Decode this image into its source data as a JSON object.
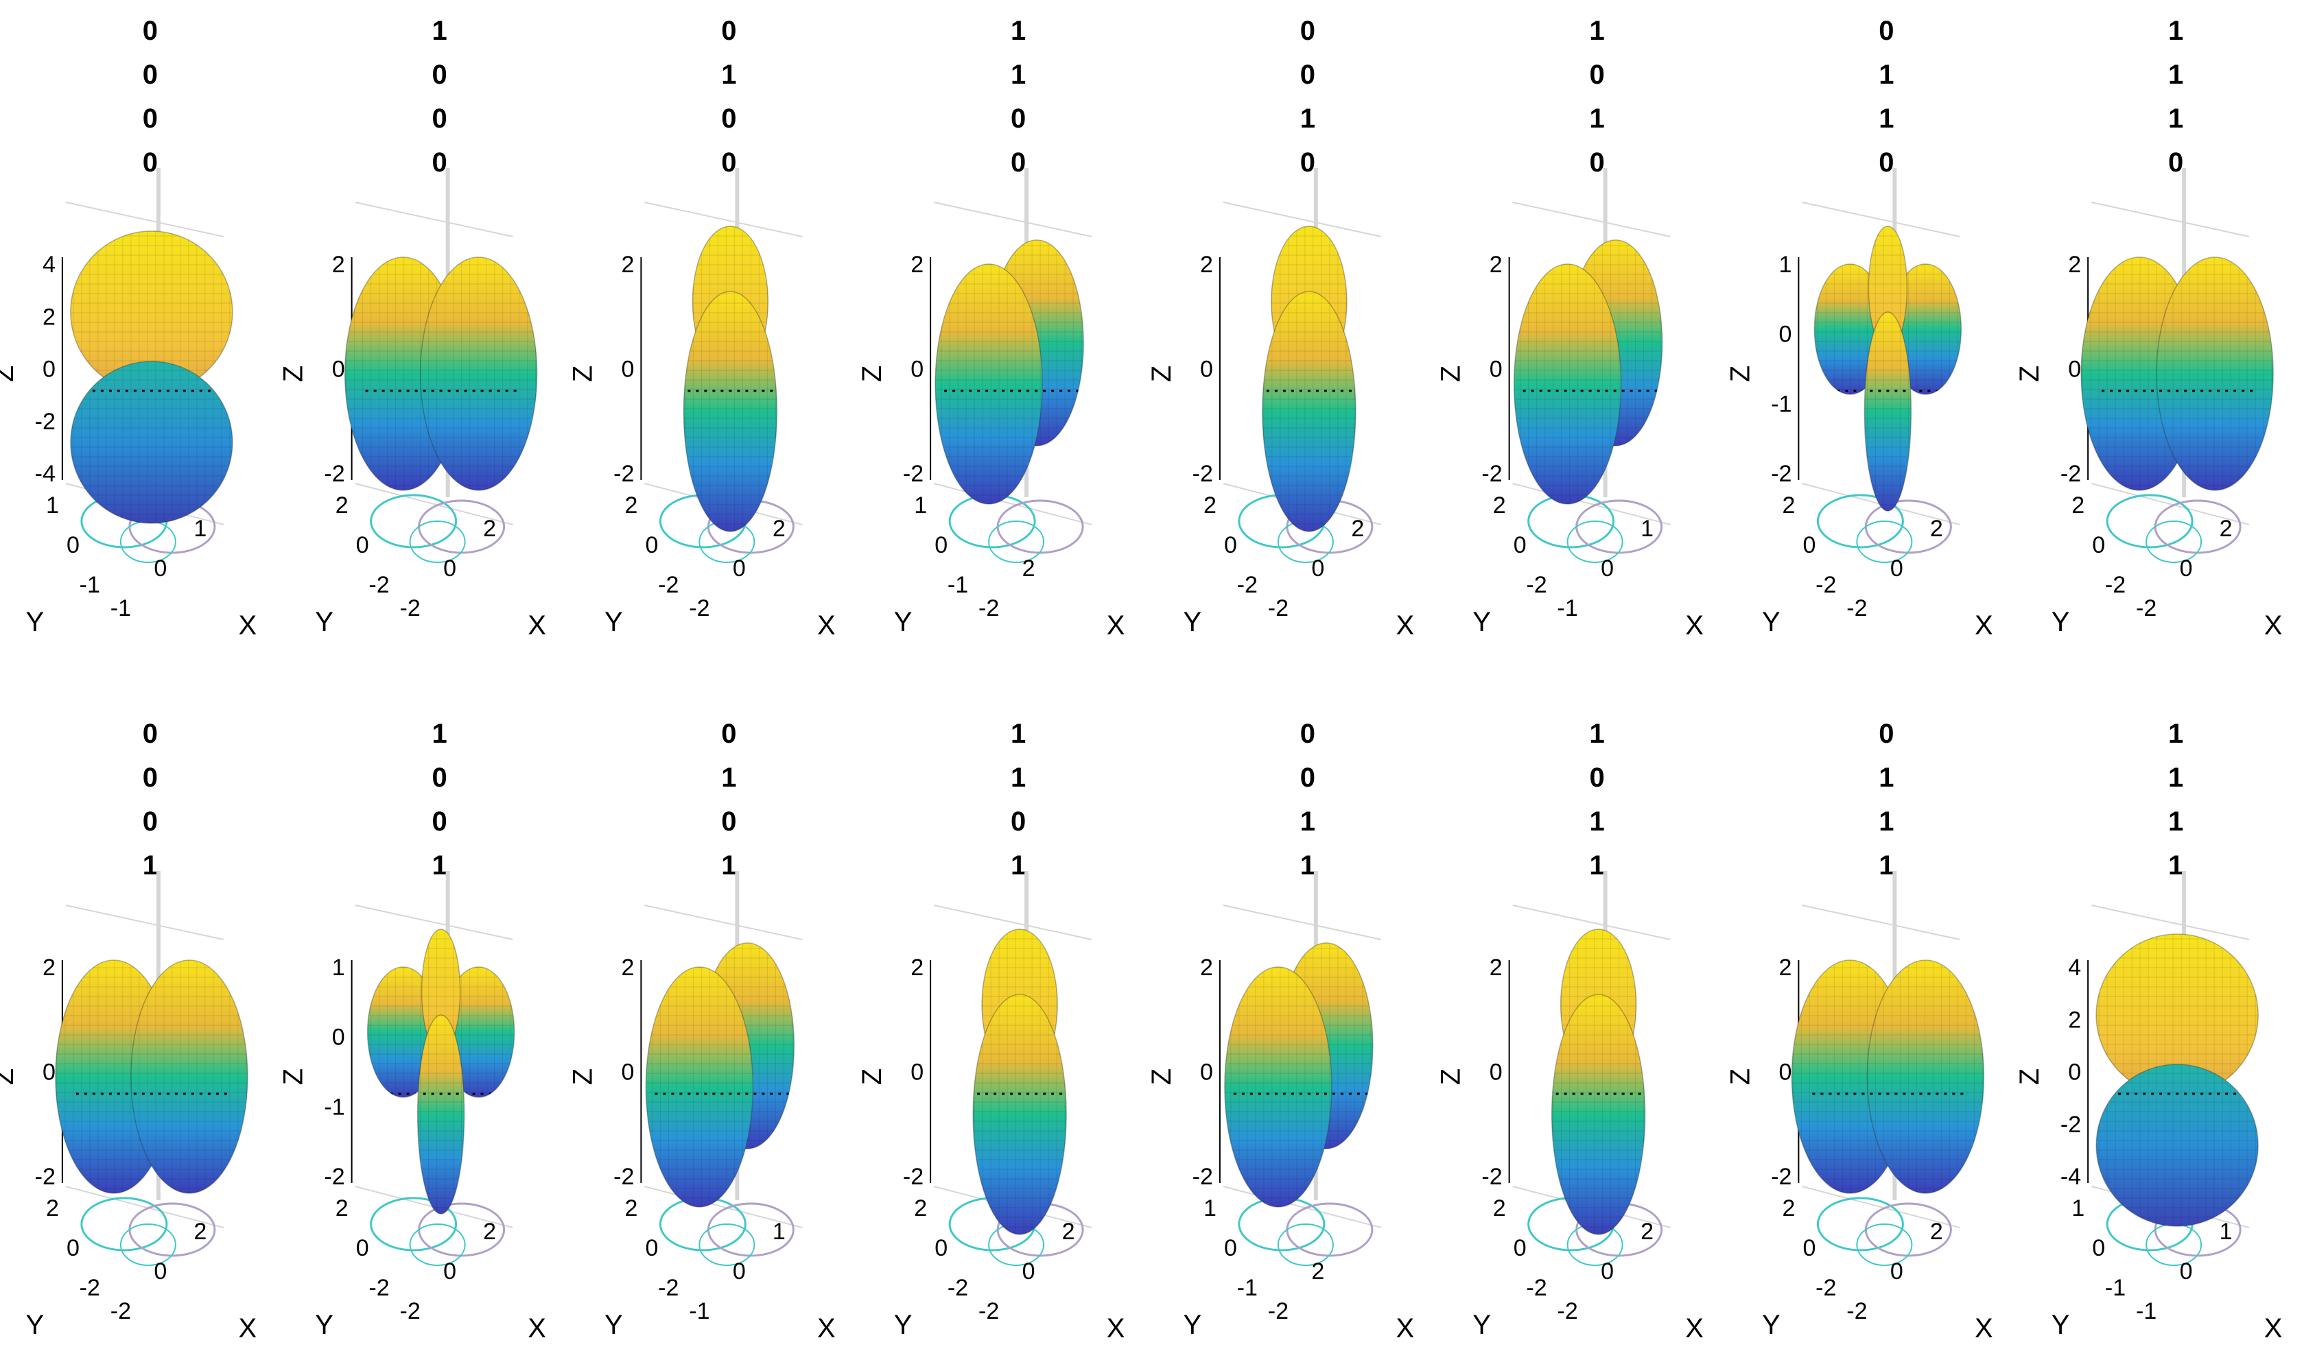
{
  "chart_data": [
    {
      "type": "surface",
      "title_bits": [
        "0",
        "0",
        "0",
        "0"
      ],
      "zlabel": "Z",
      "xlabel": "X",
      "ylabel": "Y",
      "z_ticks": [
        "4",
        "2",
        "0",
        "-2",
        "-4"
      ],
      "y_ticks": [
        "1",
        "0",
        "-1"
      ],
      "x_ticks": [
        "-1",
        "0",
        "1"
      ],
      "shape": "sphere-pair"
    },
    {
      "type": "surface",
      "title_bits": [
        "1",
        "0",
        "0",
        "0"
      ],
      "zlabel": "Z",
      "xlabel": "X",
      "ylabel": "Y",
      "z_ticks": [
        "2",
        "0",
        "-2"
      ],
      "y_ticks": [
        "2",
        "0",
        "-2"
      ],
      "x_ticks": [
        "-2",
        "0",
        "2"
      ],
      "shape": "double-lobe"
    },
    {
      "type": "surface",
      "title_bits": [
        "0",
        "1",
        "0",
        "0"
      ],
      "zlabel": "Z",
      "xlabel": "X",
      "ylabel": "Y",
      "z_ticks": [
        "2",
        "0",
        "-2"
      ],
      "y_ticks": [
        "2",
        "0",
        "-2"
      ],
      "x_ticks": [
        "-2",
        "0",
        "2"
      ],
      "shape": "narrow-lobe"
    },
    {
      "type": "surface",
      "title_bits": [
        "1",
        "1",
        "0",
        "0"
      ],
      "zlabel": "Z",
      "xlabel": "X",
      "ylabel": "Y",
      "z_ticks": [
        "2",
        "0",
        "-2"
      ],
      "y_ticks": [
        "1",
        "0",
        "-1"
      ],
      "x_ticks": [
        "-2",
        "2"
      ],
      "shape": "quad-lobe"
    },
    {
      "type": "surface",
      "title_bits": [
        "0",
        "0",
        "1",
        "0"
      ],
      "zlabel": "Z",
      "xlabel": "X",
      "ylabel": "Y",
      "z_ticks": [
        "2",
        "0",
        "-2"
      ],
      "y_ticks": [
        "2",
        "0",
        "-2"
      ],
      "x_ticks": [
        "-2",
        "0",
        "2"
      ],
      "shape": "narrow-lobe"
    },
    {
      "type": "surface",
      "title_bits": [
        "1",
        "0",
        "1",
        "0"
      ],
      "zlabel": "Z",
      "xlabel": "X",
      "ylabel": "Y",
      "z_ticks": [
        "2",
        "0",
        "-2"
      ],
      "y_ticks": [
        "2",
        "0",
        "-2"
      ],
      "x_ticks": [
        "-1",
        "0",
        "1"
      ],
      "shape": "quad-lobe"
    },
    {
      "type": "surface",
      "title_bits": [
        "0",
        "1",
        "1",
        "0"
      ],
      "zlabel": "Z",
      "xlabel": "X",
      "ylabel": "Y",
      "z_ticks": [
        "1",
        "0",
        "-1",
        "-2"
      ],
      "y_ticks": [
        "2",
        "0",
        "-2"
      ],
      "x_ticks": [
        "-2",
        "0",
        "2"
      ],
      "shape": "cross-lobe"
    },
    {
      "type": "surface",
      "title_bits": [
        "1",
        "1",
        "1",
        "0"
      ],
      "zlabel": "Z",
      "xlabel": "X",
      "ylabel": "Y",
      "z_ticks": [
        "2",
        "0",
        "-2"
      ],
      "y_ticks": [
        "2",
        "0",
        "-2"
      ],
      "x_ticks": [
        "-2",
        "0",
        "2"
      ],
      "shape": "double-lobe"
    },
    {
      "type": "surface",
      "title_bits": [
        "0",
        "0",
        "0",
        "1"
      ],
      "zlabel": "Z",
      "xlabel": "X",
      "ylabel": "Y",
      "z_ticks": [
        "2",
        "0",
        "-2"
      ],
      "y_ticks": [
        "2",
        "0",
        "-2"
      ],
      "x_ticks": [
        "-2",
        "0",
        "2"
      ],
      "shape": "double-lobe"
    },
    {
      "type": "surface",
      "title_bits": [
        "1",
        "0",
        "0",
        "1"
      ],
      "zlabel": "Z",
      "xlabel": "X",
      "ylabel": "Y",
      "z_ticks": [
        "1",
        "0",
        "-1",
        "-2"
      ],
      "y_ticks": [
        "2",
        "0",
        "-2"
      ],
      "x_ticks": [
        "-2",
        "0",
        "2"
      ],
      "shape": "cross-lobe"
    },
    {
      "type": "surface",
      "title_bits": [
        "0",
        "1",
        "0",
        "1"
      ],
      "zlabel": "Z",
      "xlabel": "X",
      "ylabel": "Y",
      "z_ticks": [
        "2",
        "0",
        "-2"
      ],
      "y_ticks": [
        "2",
        "0",
        "-2"
      ],
      "x_ticks": [
        "-1",
        "0",
        "1"
      ],
      "shape": "quad-lobe"
    },
    {
      "type": "surface",
      "title_bits": [
        "1",
        "1",
        "0",
        "1"
      ],
      "zlabel": "Z",
      "xlabel": "X",
      "ylabel": "Y",
      "z_ticks": [
        "2",
        "0",
        "-2"
      ],
      "y_ticks": [
        "2",
        "0",
        "-2"
      ],
      "x_ticks": [
        "-2",
        "0",
        "2"
      ],
      "shape": "narrow-lobe"
    },
    {
      "type": "surface",
      "title_bits": [
        "0",
        "0",
        "1",
        "1"
      ],
      "zlabel": "Z",
      "xlabel": "X",
      "ylabel": "Y",
      "z_ticks": [
        "2",
        "0",
        "-2"
      ],
      "y_ticks": [
        "1",
        "0",
        "-1"
      ],
      "x_ticks": [
        "-2",
        "2"
      ],
      "shape": "quad-lobe"
    },
    {
      "type": "surface",
      "title_bits": [
        "1",
        "0",
        "1",
        "1"
      ],
      "zlabel": "Z",
      "xlabel": "X",
      "ylabel": "Y",
      "z_ticks": [
        "2",
        "0",
        "-2"
      ],
      "y_ticks": [
        "2",
        "0",
        "-2"
      ],
      "x_ticks": [
        "-2",
        "0",
        "2"
      ],
      "shape": "narrow-lobe"
    },
    {
      "type": "surface",
      "title_bits": [
        "0",
        "1",
        "1",
        "1"
      ],
      "zlabel": "Z",
      "xlabel": "X",
      "ylabel": "Y",
      "z_ticks": [
        "2",
        "0",
        "-2"
      ],
      "y_ticks": [
        "2",
        "0",
        "-2"
      ],
      "x_ticks": [
        "-2",
        "0",
        "2"
      ],
      "shape": "double-lobe"
    },
    {
      "type": "surface",
      "title_bits": [
        "1",
        "1",
        "1",
        "1"
      ],
      "zlabel": "Z",
      "xlabel": "X",
      "ylabel": "Y",
      "z_ticks": [
        "4",
        "2",
        "0",
        "-2",
        "-4"
      ],
      "y_ticks": [
        "1",
        "0",
        "-1"
      ],
      "x_ticks": [
        "-1",
        "0",
        "1"
      ],
      "shape": "sphere-pair"
    }
  ],
  "colors": {
    "top": "#f9e21e",
    "upper": "#e8b93a",
    "mid": "#1fbf8f",
    "lower": "#2a93d8",
    "bottom": "#3b3fb8",
    "contour_a": "#40c8c8",
    "contour_b": "#b0a0c8",
    "axis": "#000000",
    "grid": "#d6d6d6"
  }
}
